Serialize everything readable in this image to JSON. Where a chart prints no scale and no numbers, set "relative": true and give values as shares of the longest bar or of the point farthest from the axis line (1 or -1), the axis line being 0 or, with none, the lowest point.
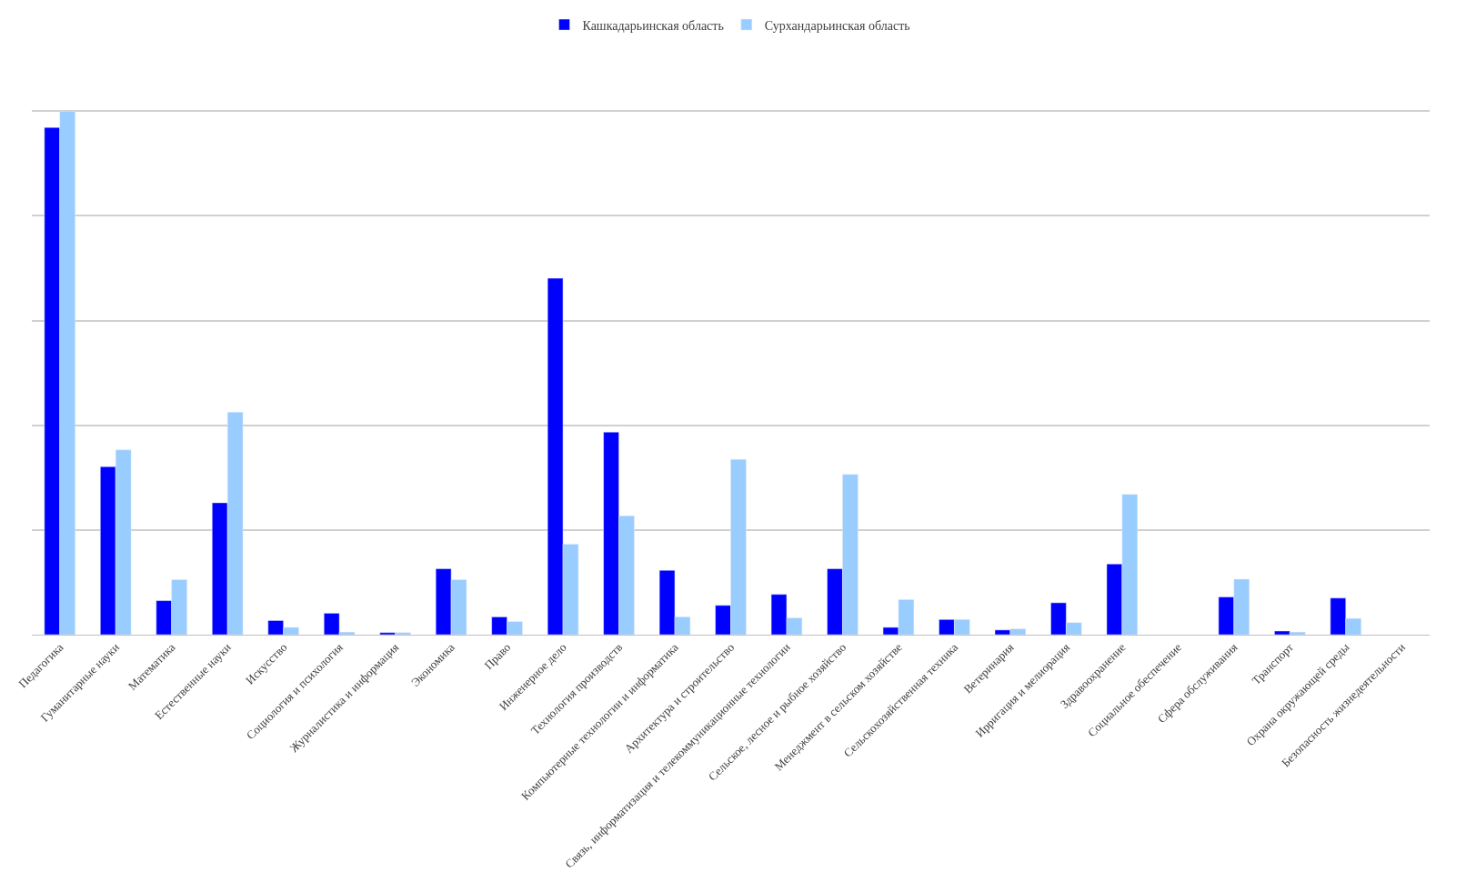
{
  "chart_data": {
    "type": "bar",
    "relative": true,
    "grid": "y",
    "legend": "top",
    "categories": [
      "Педагогика",
      "Гуманитарные науки",
      "Математика",
      "Естественные науки",
      "Искусство",
      "Социология и психология",
      "Журналистика и информация",
      "Экономика",
      "Право",
      "Инженерное дело",
      "Технология производств",
      "Компьютерные технологии и информатика",
      "Архитектура и строительство",
      "Связь, информатизация и телекоммуникационные технологии",
      "Сельское, лесное и рыбное хозяйство",
      "Менеджмент в сельском хозяйстве",
      "Сельскохозяйственная техника",
      "Ветеринария",
      "Ирригация и мелиорация",
      "Здравоохранение",
      "Социальное обеспечение",
      "Сфера обслуживания",
      "Транспорт",
      "Охрана окружающей среды",
      "Безопасность жизнедеятельности"
    ],
    "series": [
      {
        "name": "Кашкадарьинская область",
        "color": "#0000ff",
        "values": [
          0.969,
          0.321,
          0.065,
          0.252,
          0.027,
          0.041,
          0.004,
          0.126,
          0.034,
          0.681,
          0.387,
          0.123,
          0.056,
          0.077,
          0.126,
          0.014,
          0.029,
          0.009,
          0.061,
          0.135,
          null,
          0.072,
          0.007,
          0.07,
          null
        ]
      },
      {
        "name": "Сурхандарьинская область",
        "color": "#99ccff",
        "values": [
          1,
          0.353,
          0.105,
          0.425,
          0.014,
          0.005,
          0.004,
          0.105,
          0.025,
          0.173,
          0.227,
          0.034,
          0.335,
          0.032,
          0.306,
          0.067,
          0.029,
          0.011,
          0.023,
          0.268,
          null,
          0.106,
          0.005,
          0.031,
          null
        ]
      }
    ]
  }
}
